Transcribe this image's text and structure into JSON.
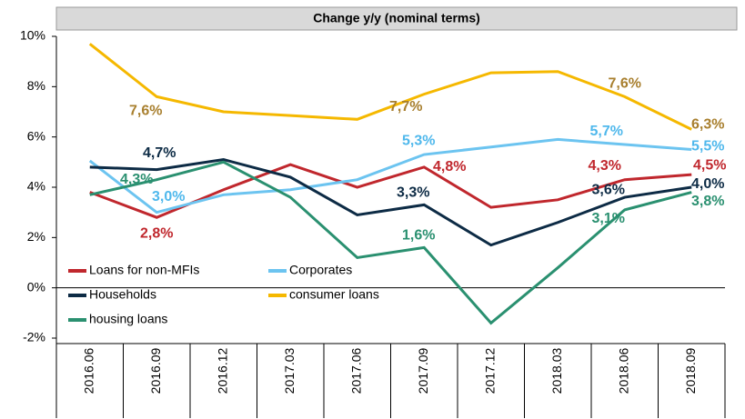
{
  "chart_data": {
    "type": "line",
    "title": "Change y/y (nominal terms)",
    "categories": [
      "2016.06",
      "2016.09",
      "2016.12",
      "2017.03",
      "2017.06",
      "2017.09",
      "2017.12",
      "2018.03",
      "2018.06",
      "2018.09"
    ],
    "series": [
      {
        "name": "Loans for non-MFIs",
        "color": "#c0272d",
        "label_color": "#c0272d",
        "values": [
          3.8,
          2.8,
          3.9,
          4.9,
          4.0,
          4.8,
          3.2,
          3.5,
          4.3,
          4.5
        ],
        "value_labels": [
          null,
          "2,8%",
          null,
          null,
          null,
          "4,8%",
          null,
          null,
          "4,3%",
          "4,5%"
        ]
      },
      {
        "name": "Corporates",
        "color": "#6cc4f0",
        "label_color": "#4fb8ec",
        "values": [
          5.05,
          3.0,
          3.7,
          3.9,
          4.3,
          5.3,
          5.6,
          5.9,
          5.7,
          5.5
        ],
        "value_labels": [
          null,
          "3,0%",
          null,
          null,
          null,
          "5,3%",
          null,
          null,
          "5,7%",
          "5,5%"
        ]
      },
      {
        "name": "Households",
        "color": "#0d2b45",
        "label_color": "#0d2b45",
        "values": [
          4.8,
          4.7,
          5.1,
          4.4,
          2.9,
          3.3,
          1.7,
          2.6,
          3.6,
          4.0
        ],
        "value_labels": [
          null,
          "4,7%",
          null,
          null,
          null,
          "3,3%",
          null,
          null,
          "3,6%",
          "4,0%"
        ]
      },
      {
        "name": "consumer loans",
        "color": "#f5b800",
        "label_color": "#a87f2e",
        "values": [
          9.7,
          7.6,
          7.0,
          6.85,
          6.7,
          7.7,
          8.55,
          8.6,
          7.6,
          6.3
        ],
        "value_labels": [
          null,
          "7,6%",
          null,
          null,
          null,
          "7,7%",
          null,
          null,
          "7,6%",
          "6,3%"
        ]
      },
      {
        "name": "housing loans",
        "color": "#2a9070",
        "label_color": "#2a9070",
        "values": [
          3.7,
          4.3,
          5.0,
          3.6,
          1.2,
          1.6,
          -1.4,
          0.8,
          3.1,
          3.8
        ],
        "value_labels": [
          null,
          "4,3%",
          null,
          null,
          null,
          "1,6%",
          null,
          null,
          "3,1%",
          "3,8%"
        ]
      }
    ],
    "ylim": [
      -2,
      10
    ],
    "yticks": [
      {
        "value": -2,
        "label": "-2%"
      },
      {
        "value": 0,
        "label": "0%"
      },
      {
        "value": 2,
        "label": "2%"
      },
      {
        "value": 4,
        "label": "4%"
      },
      {
        "value": 6,
        "label": "6%"
      },
      {
        "value": 8,
        "label": "8%"
      },
      {
        "value": 10,
        "label": "10%"
      }
    ],
    "grid": false,
    "legend": "lower left"
  }
}
